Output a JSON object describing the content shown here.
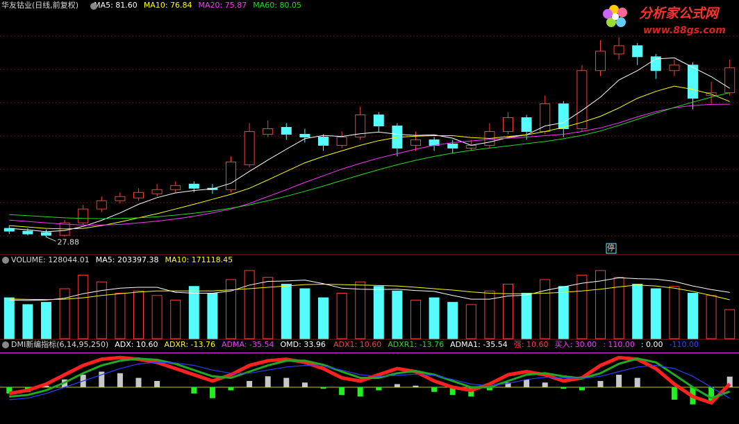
{
  "logo": {
    "title": "分析家公式网",
    "url": "www.88gs.com"
  },
  "chart_data": [
    {
      "type": "candlestick",
      "title": "华友钴业(日线,前复权)",
      "marker": "停",
      "open": [
        31,
        30,
        29.5,
        28.5,
        33,
        38,
        41,
        42,
        43.5,
        45,
        47,
        45.5,
        45,
        54,
        65,
        67.5,
        65,
        64,
        61,
        64,
        72,
        68,
        61,
        63,
        61.5,
        60,
        61,
        66,
        71,
        66,
        76,
        67,
        88,
        94,
        97,
        93,
        88,
        90,
        79,
        80
      ],
      "high": [
        32,
        31,
        30.5,
        34,
        39.5,
        42.5,
        44,
        45.5,
        47,
        48,
        48,
        47,
        57,
        69,
        70,
        69,
        67,
        65,
        66,
        75,
        73,
        69,
        66,
        64,
        63,
        63,
        69,
        73,
        72,
        79,
        77,
        90,
        99,
        100,
        98,
        94,
        92,
        91,
        84,
        92
      ],
      "low": [
        29,
        28.5,
        27.88,
        28,
        32,
        37,
        40,
        41,
        42.5,
        44,
        44,
        43.5,
        44,
        53,
        64,
        63,
        62,
        59,
        60,
        63,
        66,
        57,
        59,
        59,
        58,
        59,
        60,
        65,
        63,
        65,
        64,
        66,
        86,
        92,
        90,
        85,
        86,
        74,
        76,
        79
      ],
      "close": [
        30,
        29,
        28.5,
        33,
        38,
        41,
        42.5,
        44,
        45,
        46.5,
        45.5,
        45,
        55,
        66,
        67,
        65,
        64,
        61,
        64,
        72,
        68,
        60,
        63,
        61,
        60,
        61,
        66,
        71,
        66,
        76,
        67,
        88,
        95,
        97,
        93,
        88,
        90,
        78,
        80,
        89
      ],
      "up_color": "#ff3a3a",
      "down_color": "#54fcfc",
      "ylim": [
        22,
        110
      ],
      "series": [
        {
          "label": "MA5: 81.60",
          "color": "#ffffff",
          "values": [
            31,
            30.5,
            29.8,
            30.2,
            31.7,
            33.9,
            36.6,
            39.7,
            42.1,
            43.8,
            44.7,
            45.3,
            47.3,
            51.6,
            55.7,
            59.6,
            63.4,
            64.6,
            64.2,
            65.2,
            65.8,
            65.0,
            64.6,
            64.8,
            63.6,
            61.0,
            62.2,
            63.8,
            64.8,
            68.0,
            69.2,
            73.6,
            78.4,
            84.6,
            88.0,
            92.2,
            92.6,
            89.2,
            85.8,
            81.6
          ]
        },
        {
          "label": "MA10: 76.84",
          "color": "#ffff00",
          "values": [
            32,
            31.5,
            31,
            30.8,
            31,
            32,
            33.3,
            34.8,
            36.3,
            38,
            39.7,
            41.5,
            43.3,
            45.5,
            48.5,
            51.6,
            54.7,
            57,
            59,
            61,
            62.7,
            63.9,
            64.3,
            64.5,
            64.5,
            63.8,
            63.5,
            64.2,
            64.8,
            66,
            67.5,
            69.3,
            71.5,
            74.5,
            78,
            80.5,
            82.4,
            81.2,
            79.5,
            76.84
          ]
        },
        {
          "label": "MA20: 75.87",
          "color": "#ff33ff",
          "values": [
            34,
            33.5,
            33,
            32.5,
            32.2,
            32.2,
            32.4,
            33,
            33.6,
            34.4,
            35.4,
            36.6,
            38,
            40,
            42.5,
            45,
            47.6,
            50,
            52.4,
            54.5,
            56.4,
            58,
            59.6,
            61,
            62,
            62.6,
            63.2,
            63.6,
            64,
            64.5,
            65,
            66,
            67.3,
            69.1,
            71.3,
            73.2,
            74.6,
            75.4,
            75.8,
            75.87
          ]
        },
        {
          "label": "MA60: 80.05",
          "color": "#22dd22",
          "values": [
            36,
            35.6,
            35.2,
            34.8,
            34.6,
            34.5,
            34.6,
            34.8,
            35.2,
            35.8,
            36.5,
            37.3,
            38.3,
            39.5,
            41,
            42.6,
            44.4,
            46.3,
            48.3,
            50.3,
            52.2,
            54,
            55.6,
            57,
            58.2,
            59.2,
            60,
            60.8,
            61.6,
            62.4,
            63.4,
            64.6,
            66.2,
            68.2,
            70.4,
            72.6,
            74.7,
            76.6,
            78.4,
            80.05
          ]
        }
      ]
    },
    {
      "type": "volume",
      "title": "VOLUME: 128044.01",
      "ylim": [
        0,
        330000
      ],
      "values": [
        180000,
        150000,
        160000,
        220000,
        280000,
        250000,
        200000,
        210000,
        190000,
        170000,
        230000,
        200000,
        260000,
        300000,
        270000,
        240000,
        220000,
        180000,
        200000,
        250000,
        230000,
        210000,
        170000,
        180000,
        160000,
        150000,
        210000,
        240000,
        200000,
        260000,
        230000,
        280000,
        300000,
        270000,
        240000,
        220000,
        230000,
        200000,
        190000,
        128044.01
      ],
      "series": [
        {
          "label": "MA5: 203397.38",
          "color": "#ffffff",
          "values": [
            170000,
            168000,
            170000,
            178000,
            198000,
            212000,
            222000,
            226000,
            226000,
            204000,
            200000,
            200000,
            210000,
            236000,
            252000,
            254000,
            258000,
            242000,
            222000,
            218000,
            216000,
            218000,
            212000,
            208000,
            190000,
            174000,
            174000,
            188000,
            192000,
            212000,
            228000,
            244000,
            254000,
            268000,
            264000,
            262000,
            252000,
            232000,
            216000,
            203397.38
          ]
        },
        {
          "label": "MA10: 171118.45",
          "color": "#ffff00",
          "values": [
            175000,
            173000,
            172000,
            174000,
            180000,
            190000,
            198000,
            205000,
            210000,
            210000,
            210000,
            210000,
            215000,
            220000,
            226000,
            232000,
            238000,
            240000,
            238000,
            236000,
            234000,
            232000,
            226000,
            220000,
            214000,
            206000,
            200000,
            198000,
            198000,
            200000,
            204000,
            210000,
            218000,
            228000,
            236000,
            232000,
            222000,
            208000,
            190000,
            171118.45
          ]
        }
      ]
    },
    {
      "type": "dmi",
      "title": "DMI新编指标(6,14,95,250)",
      "ylim": [
        -118,
        118
      ],
      "legend": [
        {
          "text": "ADX: 10.60",
          "color": "#ffffff"
        },
        {
          "text": "ADXR: -13.76",
          "color": "#ffff00"
        },
        {
          "text": "ADMA: -35.54",
          "color": "#ff33ff"
        },
        {
          "text": "OMD: 33.96",
          "color": "#ffffff"
        }
      ],
      "signals": [
        {
          "text": "ADX1: 10.60",
          "color": "#ff3a3a"
        },
        {
          "text": "ADXR1: -13.76",
          "color": "#22dd22"
        },
        {
          "text": "ADMA1: -35.54",
          "color": "#ffffff"
        },
        {
          "text": "强: 10.60",
          "color": "#ff3a3a"
        },
        {
          "text": "买入: 30.00",
          "color": "#ff33ff"
        },
        {
          "text": ": 110.00",
          "color": "#ff33ff"
        },
        {
          "text": ": 0.00",
          "color": "#ffffff"
        },
        {
          "text": "-110.00",
          "color": "#3344ff"
        }
      ],
      "reference_lines": [
        {
          "value": 110,
          "color": "#ff33ff"
        },
        {
          "value": 0,
          "color": "#c8c800"
        }
      ],
      "bars": {
        "up_color": "#c8c8c8",
        "down_color": "#22ee22",
        "values": [
          -20,
          -15,
          5,
          25,
          40,
          50,
          45,
          30,
          20,
          0,
          -20,
          -35,
          -10,
          20,
          35,
          30,
          15,
          -5,
          -25,
          -30,
          -10,
          10,
          5,
          -15,
          -25,
          -30,
          -10,
          15,
          25,
          15,
          -5,
          -10,
          20,
          40,
          30,
          0,
          -40,
          -55,
          -45,
          33.96
        ]
      },
      "series": [
        {
          "color": "#ff2020",
          "width": 5,
          "values": [
            -20,
            -10,
            10,
            40,
            70,
            90,
            95,
            90,
            80,
            60,
            40,
            20,
            40,
            70,
            85,
            90,
            80,
            60,
            30,
            20,
            40,
            60,
            50,
            20,
            0,
            -10,
            10,
            40,
            50,
            40,
            20,
            30,
            70,
            95,
            90,
            60,
            10,
            -30,
            -50,
            10.6
          ]
        },
        {
          "color": "#22aa22",
          "width": 3,
          "values": [
            -30,
            -25,
            -10,
            15,
            45,
            70,
            85,
            92,
            88,
            75,
            55,
            35,
            30,
            50,
            70,
            85,
            85,
            72,
            50,
            30,
            30,
            45,
            52,
            40,
            20,
            0,
            0,
            20,
            40,
            45,
            35,
            28,
            45,
            75,
            92,
            80,
            40,
            0,
            -35,
            -13.76
          ]
        },
        {
          "color": "#2a3cff",
          "width": 1.2,
          "values": [
            -40,
            -35,
            -20,
            0,
            20,
            40,
            60,
            75,
            80,
            78,
            70,
            55,
            45,
            45,
            55,
            65,
            70,
            68,
            55,
            40,
            35,
            38,
            42,
            38,
            25,
            10,
            5,
            12,
            25,
            32,
            30,
            28,
            35,
            50,
            65,
            70,
            60,
            35,
            0,
            -35.54
          ]
        }
      ]
    }
  ]
}
